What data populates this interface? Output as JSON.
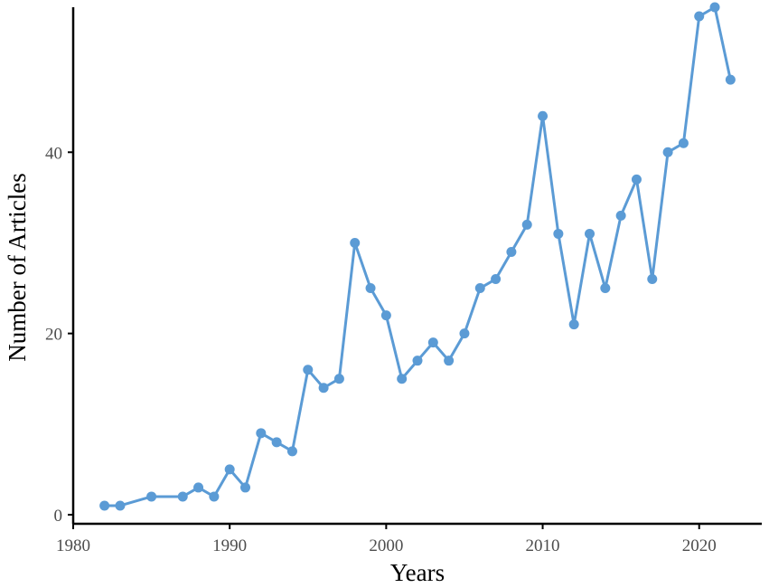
{
  "chart_data": {
    "type": "line",
    "title": "",
    "xlabel": "Years",
    "ylabel": "Number of Articles",
    "xlim": [
      1980,
      2024
    ],
    "ylim": [
      -1,
      56
    ],
    "x_ticks": [
      1980,
      1990,
      2000,
      2010,
      2020
    ],
    "y_ticks": [
      0,
      20,
      40
    ],
    "grid": false,
    "legend": "none",
    "colors": {
      "series": "#5b9bd5",
      "axis": "#000000",
      "tick_label": "#4d4d4d"
    },
    "series": [
      {
        "x": [
          1982,
          1983,
          1985,
          1987,
          1988,
          1989,
          1990,
          1991,
          1992,
          1993,
          1994,
          1995,
          1996,
          1997,
          1998,
          1999,
          2000,
          2001,
          2002,
          2003,
          2004,
          2005,
          2006,
          2007,
          2008,
          2009,
          2010,
          2011,
          2012,
          2013,
          2014,
          2015,
          2016,
          2017,
          2018,
          2019,
          2020,
          2021,
          2022
        ],
        "values": [
          1,
          1,
          2,
          2,
          3,
          2,
          5,
          3,
          9,
          8,
          7,
          16,
          14,
          15,
          30,
          25,
          22,
          15,
          17,
          19,
          17,
          20,
          25,
          26,
          29,
          32,
          44,
          31,
          21,
          31,
          25,
          33,
          37,
          26,
          40,
          41,
          55,
          56,
          48
        ]
      }
    ]
  }
}
